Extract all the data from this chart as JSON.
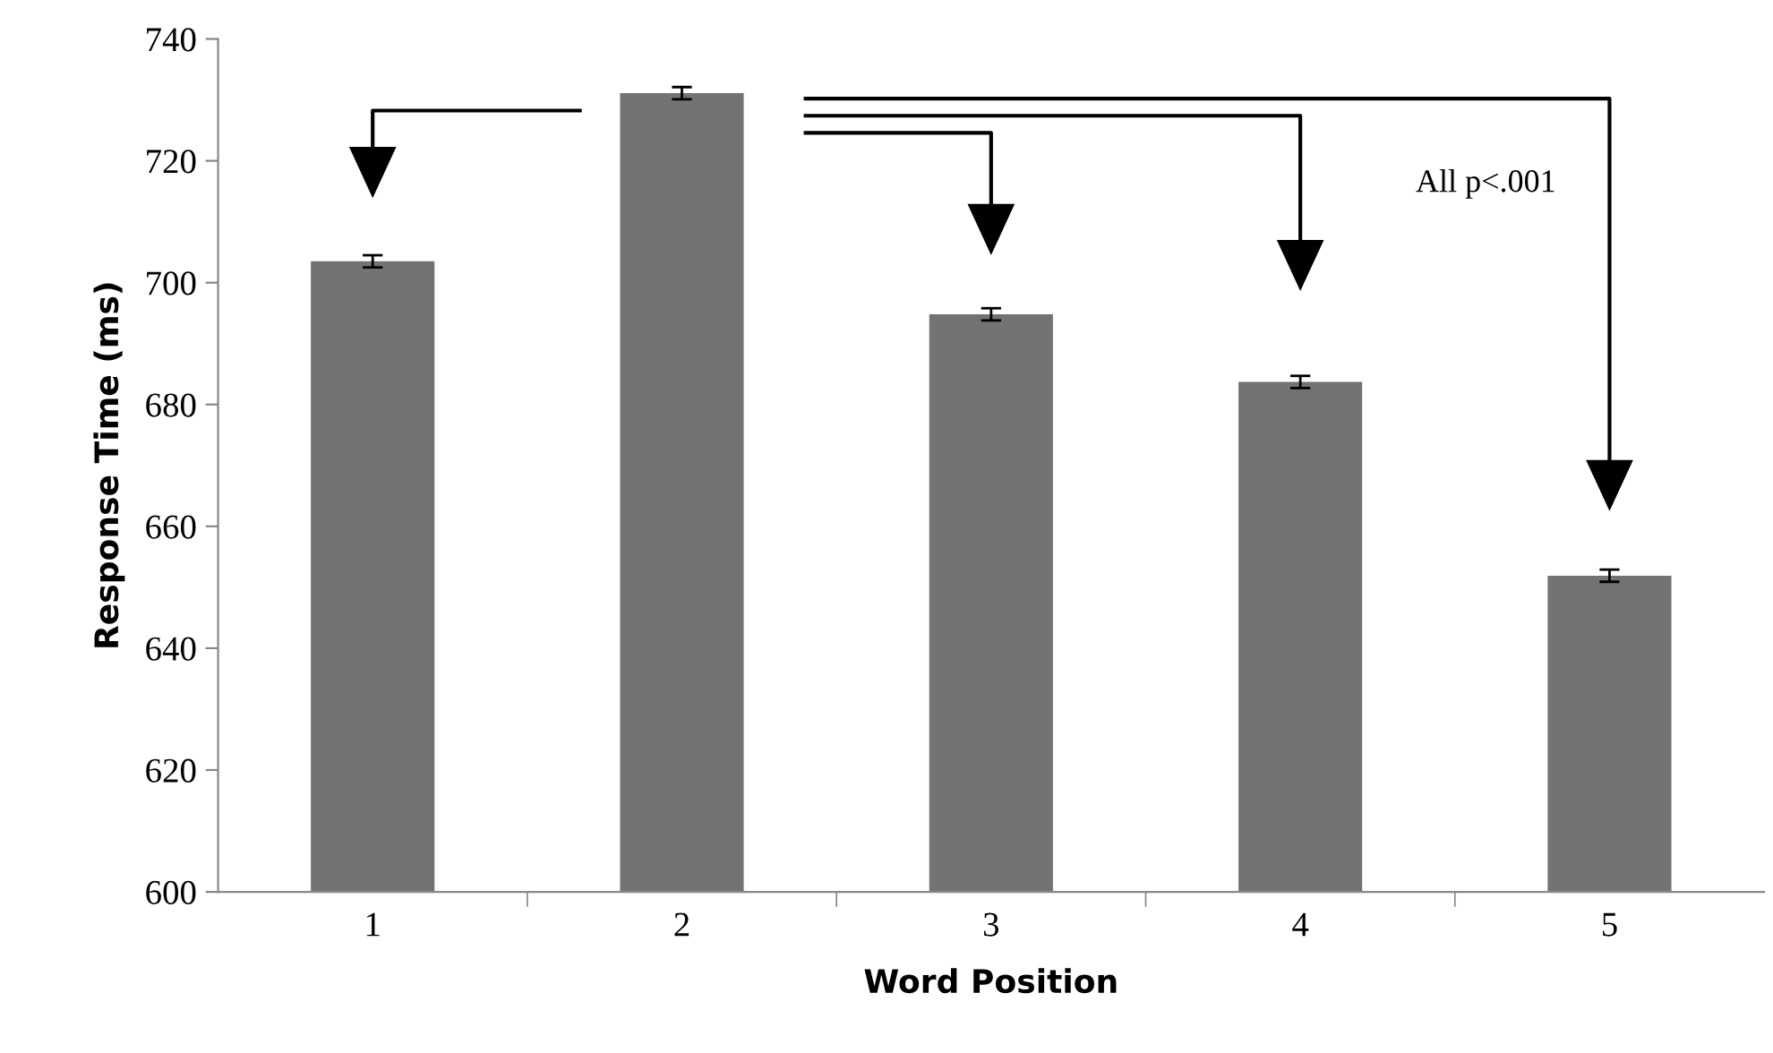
{
  "chart_data": {
    "type": "bar",
    "xlabel": "Word Position",
    "ylabel": "Response Time (ms)",
    "categories": [
      "1",
      "2",
      "3",
      "4",
      "5"
    ],
    "values": [
      703.5,
      731.1,
      694.8,
      683.7,
      651.9
    ],
    "errors": [
      1,
      1,
      1,
      1,
      1
    ],
    "color": "#737373",
    "ylim": [
      600,
      740
    ],
    "yticks": [
      600,
      620,
      640,
      660,
      680,
      700,
      720,
      740
    ],
    "grid": false,
    "annotations": [
      "All p<.001"
    ]
  }
}
